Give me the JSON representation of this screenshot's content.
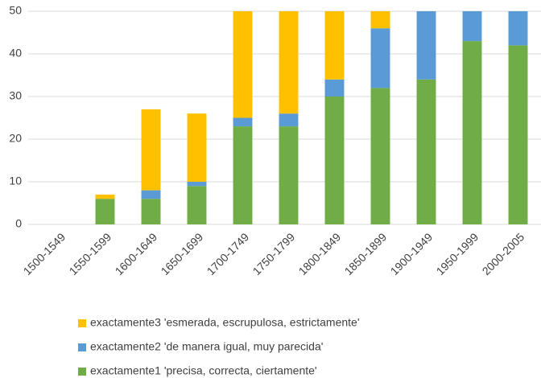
{
  "chart_data": {
    "type": "stacked_bar",
    "categories": [
      "1500-1549",
      "1550-1599",
      "1600-1649",
      "1650-1699",
      "1700-1749",
      "1750-1799",
      "1800-1849",
      "1850-1899",
      "1900-1949",
      "1950-1999",
      "2000-2005"
    ],
    "series": [
      {
        "name": "exactamente1 'precisa, correcta, ciertamente'",
        "color": "#70ad47",
        "values": [
          0,
          6,
          6,
          9,
          23,
          23,
          30,
          32,
          34,
          43,
          42
        ]
      },
      {
        "name": "exactamente2 'de manera igual, muy parecida'",
        "color": "#5b9bd5",
        "values": [
          0,
          0,
          2,
          1,
          2,
          3,
          4,
          14,
          17,
          8,
          9
        ]
      },
      {
        "name": "exactamente3 'esmerada, escrupulosa, estrictamente'",
        "color": "#ffc000",
        "values": [
          0,
          1,
          19,
          16,
          27,
          26,
          18,
          6,
          0,
          0,
          0
        ]
      }
    ],
    "ylim": [
      0,
      50
    ],
    "yticks": [
      0,
      10,
      20,
      30,
      40,
      50
    ],
    "grid": true,
    "legend": "bottom"
  }
}
